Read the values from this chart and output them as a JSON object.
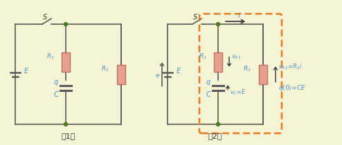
{
  "bg_color": "#f5f5d5",
  "wire_color": "#5a5a5a",
  "resistor_fill": "#e8a090",
  "resistor_edge": "#c07060",
  "node_color": "#4a7a20",
  "dashed_box_color": "#e87820",
  "label_color": "#4a90c8",
  "text_color": "#333333",
  "fig_width": 4.94,
  "fig_height": 2.1,
  "dpi": 100
}
